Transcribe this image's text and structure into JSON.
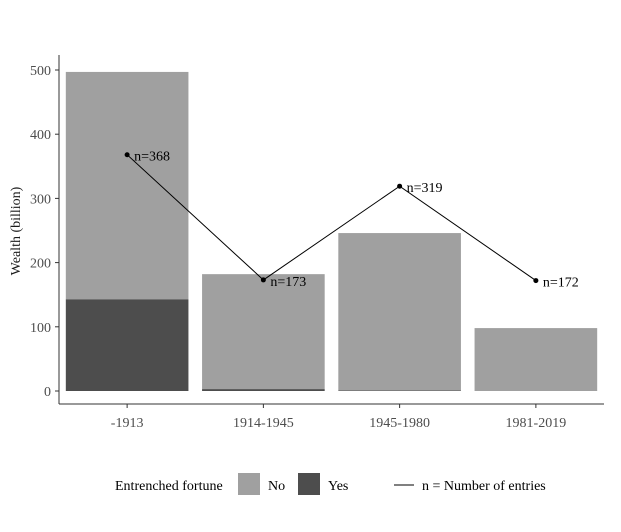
{
  "chart_data": {
    "type": "bar",
    "stacked": true,
    "title": "",
    "xlabel": "",
    "ylabel": "Wealth (billion)",
    "ylim": [
      0,
      500
    ],
    "yticks": [
      0,
      100,
      200,
      300,
      400,
      500
    ],
    "grid": false,
    "legend_position": "bottom",
    "categories": [
      "-1913",
      "1914-1945",
      "1945-1980",
      "1981-2019"
    ],
    "series": [
      {
        "name": "Yes",
        "values": [
          143,
          3,
          1,
          0
        ],
        "color": "#4d4d4d"
      },
      {
        "name": "No",
        "values": [
          354,
          179,
          245,
          98
        ],
        "color": "#a0a0a0"
      }
    ],
    "line": {
      "values": [
        368,
        173,
        319,
        172
      ],
      "labels": [
        "n=368",
        "n=173",
        "n=319",
        "n=172"
      ],
      "color": "#000000"
    },
    "legend": {
      "title": "Entrenched fortune",
      "items": [
        "No",
        "Yes"
      ],
      "line_label": "n = Number of entries"
    }
  }
}
